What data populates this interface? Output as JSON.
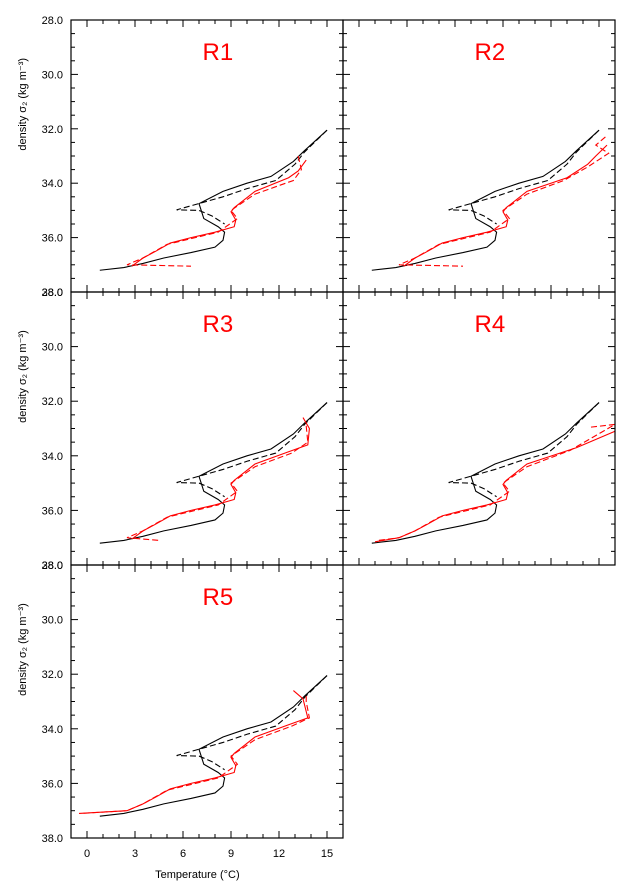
{
  "colors": {
    "black": "#000000",
    "red": "#ff0000"
  },
  "chart_data": {
    "type": "line",
    "xlabel": "Temperature (°C)",
    "ylabel": "density σ₂ (kg m⁻³)",
    "xlim": [
      -1,
      16
    ],
    "ylim": [
      28.0,
      38.0
    ],
    "x_ticks": [
      0,
      3,
      6,
      9,
      12,
      15
    ],
    "x_tick_labels": [
      "0",
      "3",
      "6",
      "9",
      "12",
      "15"
    ],
    "y_ticks": [
      28,
      30,
      32,
      34,
      36,
      38
    ],
    "y_tick_labels": [
      "28.0",
      "30.0",
      "32.0",
      "34.0",
      "36.0",
      "38.0"
    ],
    "reference": {
      "solid": [
        [
          15.0,
          32.05
        ],
        [
          13.6,
          32.8
        ],
        [
          12.9,
          33.2
        ],
        [
          11.5,
          33.75
        ],
        [
          10.0,
          34.0
        ],
        [
          8.5,
          34.3
        ],
        [
          7.0,
          34.75
        ],
        [
          7.3,
          35.3
        ],
        [
          8.2,
          35.6
        ],
        [
          8.6,
          35.8
        ],
        [
          8.5,
          36.1
        ],
        [
          8.0,
          36.35
        ],
        [
          6.5,
          36.55
        ],
        [
          4.8,
          36.75
        ],
        [
          3.5,
          36.95
        ],
        [
          2.3,
          37.1
        ],
        [
          0.8,
          37.2
        ]
      ],
      "dashed": [
        [
          15.0,
          32.05
        ],
        [
          13.6,
          32.85
        ],
        [
          13.0,
          33.3
        ],
        [
          11.8,
          33.9
        ],
        [
          10.0,
          34.2
        ],
        [
          8.5,
          34.5
        ],
        [
          5.6,
          34.98
        ],
        [
          7.0,
          35.0
        ],
        [
          7.8,
          35.2
        ],
        [
          8.6,
          35.5
        ]
      ]
    },
    "panels": [
      {
        "title": "R1",
        "red_solid": [
          [
            13.7,
            33.15
          ],
          [
            13.2,
            33.55
          ],
          [
            12.6,
            33.8
          ],
          [
            10.5,
            34.3
          ],
          [
            9.2,
            34.9
          ],
          [
            9.0,
            35.05
          ],
          [
            9.3,
            35.35
          ],
          [
            9.2,
            35.6
          ],
          [
            8.0,
            35.8
          ],
          [
            6.5,
            36.0
          ],
          [
            5.2,
            36.2
          ],
          [
            4.3,
            36.5
          ],
          [
            3.5,
            36.75
          ],
          [
            2.8,
            37.05
          ]
        ],
        "red_dashed": [
          [
            13.2,
            33.0
          ],
          [
            13.4,
            33.5
          ],
          [
            12.9,
            33.9
          ],
          [
            10.5,
            34.4
          ],
          [
            9.0,
            35.0
          ],
          [
            9.4,
            35.3
          ],
          [
            8.2,
            35.8
          ],
          [
            5.0,
            36.25
          ],
          [
            3.5,
            36.75
          ],
          [
            2.5,
            37.0
          ],
          [
            6.5,
            37.05
          ]
        ]
      },
      {
        "title": "R2",
        "red_solid": [
          [
            15.5,
            32.6
          ],
          [
            14.8,
            33.0
          ],
          [
            14.3,
            33.3
          ],
          [
            13.0,
            33.8
          ],
          [
            10.5,
            34.3
          ],
          [
            9.2,
            34.9
          ],
          [
            9.0,
            35.05
          ],
          [
            9.3,
            35.35
          ],
          [
            9.2,
            35.6
          ],
          [
            8.0,
            35.8
          ],
          [
            6.5,
            36.0
          ],
          [
            5.2,
            36.2
          ],
          [
            4.3,
            36.5
          ],
          [
            3.5,
            36.75
          ],
          [
            2.8,
            37.05
          ]
        ],
        "red_dashed": [
          [
            15.4,
            32.3
          ],
          [
            14.8,
            32.6
          ],
          [
            15.6,
            32.9
          ],
          [
            14.3,
            33.4
          ],
          [
            12.8,
            33.9
          ],
          [
            10.5,
            34.4
          ],
          [
            9.0,
            35.0
          ],
          [
            9.4,
            35.3
          ],
          [
            8.2,
            35.8
          ],
          [
            5.0,
            36.25
          ],
          [
            3.5,
            36.75
          ],
          [
            2.5,
            37.0
          ],
          [
            6.5,
            37.05
          ]
        ]
      },
      {
        "title": "R3",
        "red_solid": [
          [
            13.5,
            32.6
          ],
          [
            13.9,
            33.0
          ],
          [
            13.8,
            33.6
          ],
          [
            12.6,
            33.85
          ],
          [
            10.5,
            34.3
          ],
          [
            9.2,
            34.9
          ],
          [
            9.0,
            35.05
          ],
          [
            9.3,
            35.35
          ],
          [
            9.2,
            35.6
          ],
          [
            8.0,
            35.8
          ],
          [
            6.5,
            36.0
          ],
          [
            5.2,
            36.2
          ],
          [
            4.3,
            36.5
          ],
          [
            3.5,
            36.75
          ],
          [
            2.8,
            37.05
          ]
        ],
        "red_dashed": [
          [
            13.7,
            32.9
          ],
          [
            13.8,
            33.5
          ],
          [
            12.8,
            33.9
          ],
          [
            10.5,
            34.4
          ],
          [
            9.0,
            35.0
          ],
          [
            9.4,
            35.3
          ],
          [
            8.2,
            35.8
          ],
          [
            5.0,
            36.25
          ],
          [
            3.5,
            36.75
          ],
          [
            2.5,
            37.0
          ],
          [
            4.5,
            37.1
          ]
        ]
      },
      {
        "title": "R4",
        "red_solid": [
          [
            16.0,
            33.1
          ],
          [
            13.6,
            33.7
          ],
          [
            10.5,
            34.3
          ],
          [
            9.2,
            34.9
          ],
          [
            9.0,
            35.05
          ],
          [
            9.3,
            35.35
          ],
          [
            9.2,
            35.6
          ],
          [
            8.0,
            35.8
          ],
          [
            6.5,
            36.0
          ],
          [
            5.2,
            36.2
          ],
          [
            4.3,
            36.5
          ],
          [
            3.5,
            36.75
          ],
          [
            2.5,
            37.0
          ],
          [
            1.0,
            37.15
          ]
        ],
        "red_dashed": [
          [
            14.5,
            32.95
          ],
          [
            16.0,
            32.85
          ],
          [
            13.2,
            33.8
          ],
          [
            10.5,
            34.4
          ],
          [
            9.0,
            35.0
          ],
          [
            9.4,
            35.3
          ],
          [
            8.2,
            35.8
          ],
          [
            5.0,
            36.25
          ],
          [
            3.5,
            36.75
          ],
          [
            2.5,
            37.0
          ],
          [
            1.2,
            37.1
          ]
        ]
      },
      {
        "title": "R5",
        "red_solid": [
          [
            12.9,
            32.6
          ],
          [
            13.5,
            32.9
          ],
          [
            13.8,
            33.6
          ],
          [
            12.6,
            33.85
          ],
          [
            10.5,
            34.3
          ],
          [
            9.2,
            34.9
          ],
          [
            9.0,
            35.05
          ],
          [
            9.3,
            35.35
          ],
          [
            9.2,
            35.6
          ],
          [
            8.0,
            35.8
          ],
          [
            6.5,
            36.0
          ],
          [
            5.2,
            36.2
          ],
          [
            4.3,
            36.5
          ],
          [
            3.5,
            36.75
          ],
          [
            2.5,
            37.0
          ],
          [
            -0.5,
            37.1
          ]
        ],
        "red_dashed": [
          [
            13.7,
            32.8
          ],
          [
            13.7,
            33.0
          ],
          [
            13.9,
            33.6
          ],
          [
            12.8,
            33.9
          ],
          [
            10.5,
            34.4
          ],
          [
            9.0,
            35.0
          ],
          [
            9.4,
            35.3
          ],
          [
            8.2,
            35.8
          ],
          [
            5.0,
            36.25
          ],
          [
            3.5,
            36.75
          ],
          [
            2.5,
            37.0
          ],
          [
            -0.4,
            37.1
          ]
        ]
      }
    ]
  }
}
